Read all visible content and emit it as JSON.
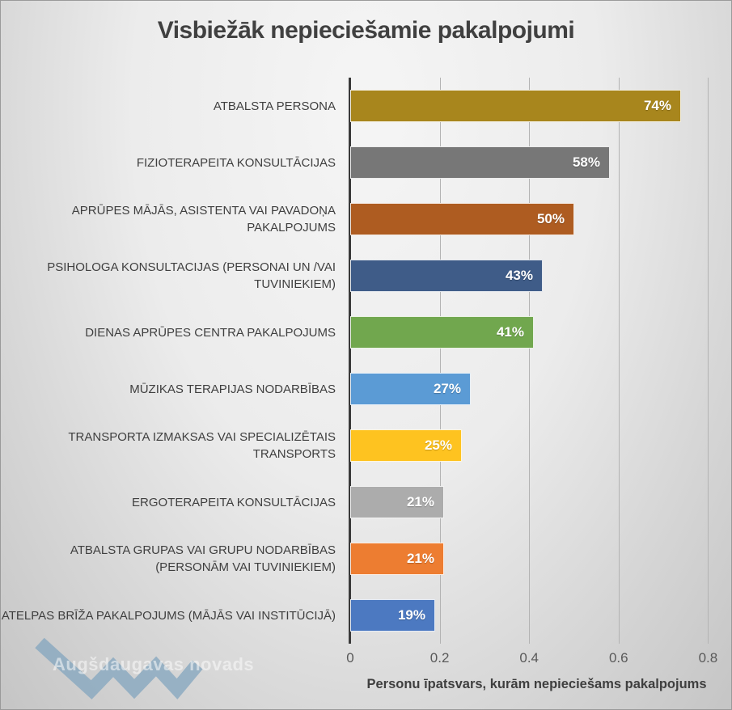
{
  "title": "Visbiežāk nepieciešamie pakalpojumi",
  "watermark": {
    "text": "Augšdaugavas novads",
    "logo_color": "#87A7BF"
  },
  "chart_data": {
    "type": "bar",
    "orientation": "horizontal",
    "title": "Visbiežāk nepieciešamie pakalpojumi",
    "xlabel": "Personu īpatsvars, kurām nepieciešams pakalpojums",
    "ylabel": "",
    "xlim": [
      0,
      0.8
    ],
    "x_ticks": [
      "0",
      "0.2",
      "0.4",
      "0.6",
      "0.8"
    ],
    "grid": true,
    "legend": false,
    "categories": [
      "ATBALSTA PERSONA",
      "FIZIOTERAPEITA  KONSULTĀCIJAS",
      "APRŪPES MĀJĀS, ASISTENTA VAI PAVADOŅA PAKALPOJUMS",
      "PSIHOLOGA KONSULTACIJAS (PERSONAI UN /VAI TUVINIEKIEM)",
      "DIENAS APRŪPES CENTRA PAKALPOJUMS",
      "MŪZIKAS TERAPIJAS NODARBĪBAS",
      "TRANSPORTA IZMAKSAS VAI SPECIALIZĒTAIS TRANSPORTS",
      "ERGOTERAPEITA KONSULTĀCIJAS",
      "ATBALSTA GRUPAS VAI  GRUPU NODARBĪBAS (PERSONĀM VAI TUVINIEKIEM)",
      "ATELPAS BRĪŽA PAKALPOJUMS (MĀJĀS VAI INSTITŪCIJĀ)"
    ],
    "values": [
      0.74,
      0.58,
      0.5,
      0.43,
      0.41,
      0.27,
      0.25,
      0.21,
      0.21,
      0.19
    ],
    "value_labels": [
      "74%",
      "58%",
      "50%",
      "43%",
      "41%",
      "27%",
      "25%",
      "21%",
      "21%",
      "19%"
    ],
    "bar_colors": [
      "#A8861D",
      "#777777",
      "#AE5C21",
      "#3F5C88",
      "#71A74E",
      "#5B9BD5",
      "#FEC320",
      "#ACACAC",
      "#ED7D31",
      "#4C79C1"
    ],
    "axis_color": "#3a3a3a",
    "gridline_color": "#b3b3b3"
  }
}
